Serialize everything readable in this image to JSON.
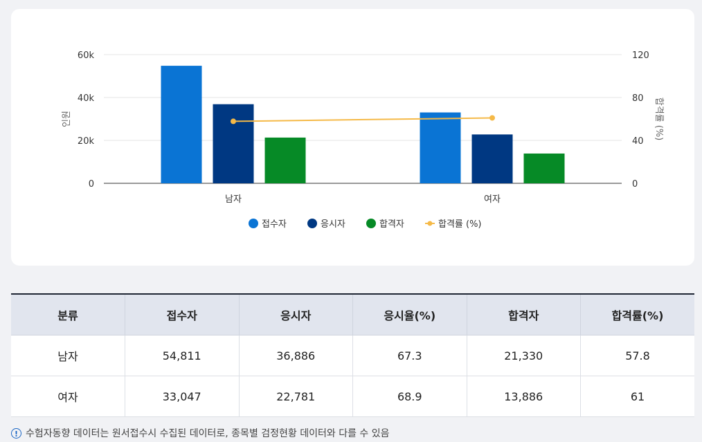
{
  "chart_data": {
    "type": "bar",
    "categories": [
      "남자",
      "여자"
    ],
    "series": [
      {
        "name": "접수자",
        "type": "bar",
        "axis": "left",
        "color": "#0a74d4",
        "values": [
          54811,
          33047
        ]
      },
      {
        "name": "응시자",
        "type": "bar",
        "axis": "left",
        "color": "#003882",
        "values": [
          36886,
          22781
        ]
      },
      {
        "name": "합격자",
        "type": "bar",
        "axis": "left",
        "color": "#068a26",
        "values": [
          21330,
          13886
        ]
      },
      {
        "name": "합격률 (%)",
        "type": "line",
        "axis": "right",
        "color": "#f5b947",
        "values": [
          57.8,
          61
        ]
      }
    ],
    "ylabel": "인원",
    "y2label": "합격률 (%)",
    "ylim": [
      0,
      60000
    ],
    "y2lim": [
      0,
      120
    ],
    "yticks": [
      0,
      20000,
      40000,
      60000
    ],
    "ytick_labels": [
      "0",
      "20k",
      "40k",
      "60k"
    ],
    "y2ticks": [
      0,
      40,
      80,
      120
    ],
    "y2tick_labels": [
      "0",
      "40",
      "80",
      "120"
    ],
    "legend_position": "bottom",
    "grid": true
  },
  "table": {
    "headers": [
      "분류",
      "접수자",
      "응시자",
      "응시율(%)",
      "합격자",
      "합격률(%)"
    ],
    "rows": [
      [
        "남자",
        "54,811",
        "36,886",
        "67.3",
        "21,330",
        "57.8"
      ],
      [
        "여자",
        "33,047",
        "22,781",
        "68.9",
        "13,886",
        "61"
      ]
    ]
  },
  "note": {
    "icon": "exclamation-circle-icon",
    "text": "수험자동향 데이터는 원서접수시 수집된 데이터로, 종목별 검정현황 데이터와 다를 수 있음"
  }
}
